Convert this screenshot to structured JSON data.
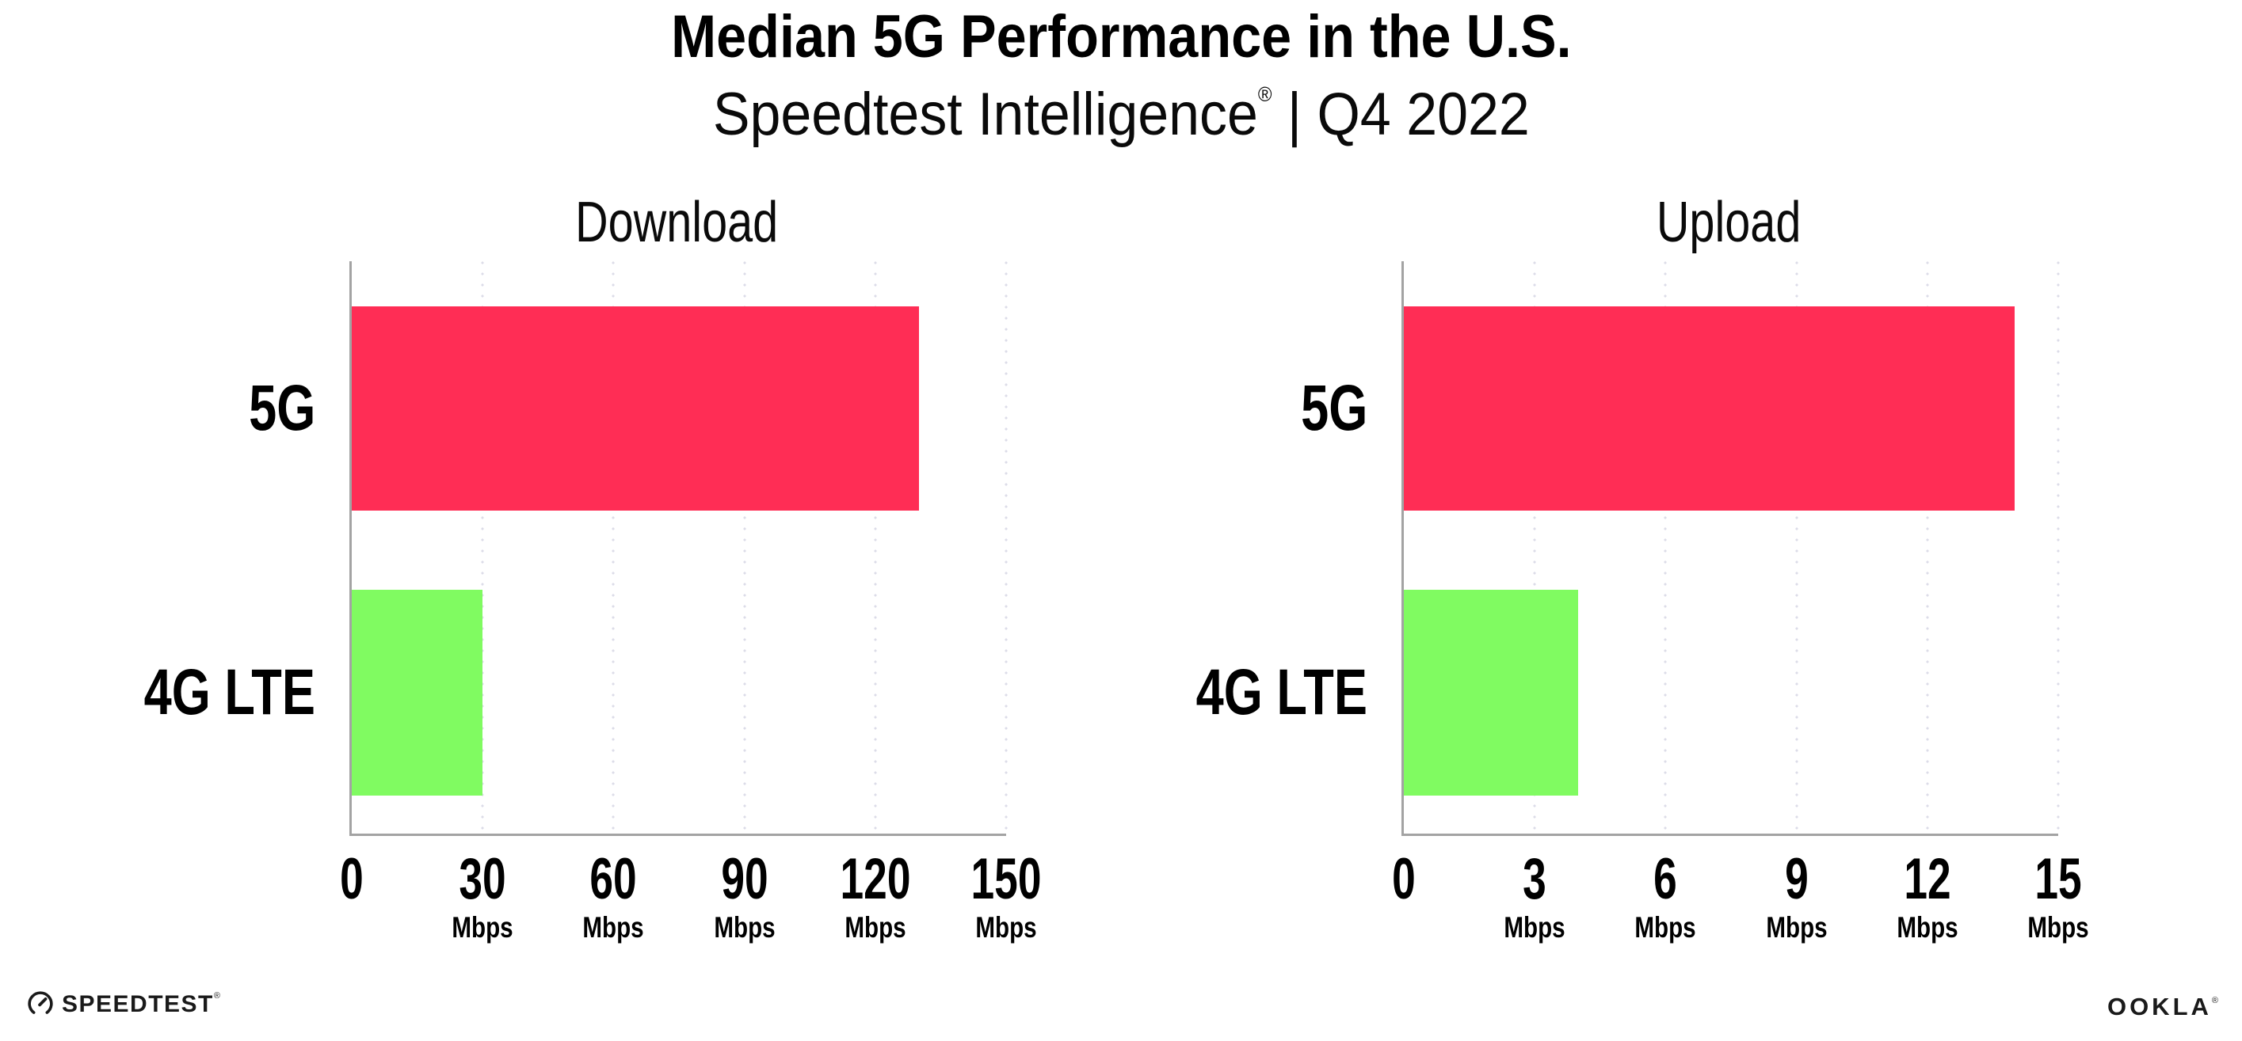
{
  "header": {
    "title": "Median 5G Performance in the U.S.",
    "subtitle_brand": "Speedtest Intelligence",
    "subtitle_reg": "®",
    "subtitle_rest": " | Q4 2022"
  },
  "chart_data": [
    {
      "type": "bar",
      "orientation": "horizontal",
      "title": "Download",
      "categories": [
        "5G",
        "4G LTE"
      ],
      "values": [
        130,
        30
      ],
      "unit": "Mbps",
      "xlabel": "",
      "ylabel": "",
      "xlim": [
        0,
        150
      ],
      "ticks": [
        0,
        30,
        60,
        90,
        120,
        150
      ],
      "bar_colors": [
        "#FF2D55",
        "#80FB61"
      ],
      "axis_color": "#A3A3A3",
      "grid_color": "#DCDCE8",
      "grid": "dotted-vertical"
    },
    {
      "type": "bar",
      "orientation": "horizontal",
      "title": "Upload",
      "categories": [
        "5G",
        "4G LTE"
      ],
      "values": [
        14,
        4
      ],
      "unit": "Mbps",
      "xlabel": "",
      "ylabel": "",
      "xlim": [
        0,
        15
      ],
      "ticks": [
        0,
        3,
        6,
        9,
        12,
        15
      ],
      "bar_colors": [
        "#FF2D55",
        "#80FB61"
      ],
      "axis_color": "#A3A3A3",
      "grid_color": "#DCDCE8",
      "grid": "dotted-vertical"
    }
  ],
  "footer": {
    "speedtest_label": "SPEEDTEST",
    "speedtest_reg": "®",
    "ookla_label": "OOKLA",
    "ookla_reg": "®"
  }
}
